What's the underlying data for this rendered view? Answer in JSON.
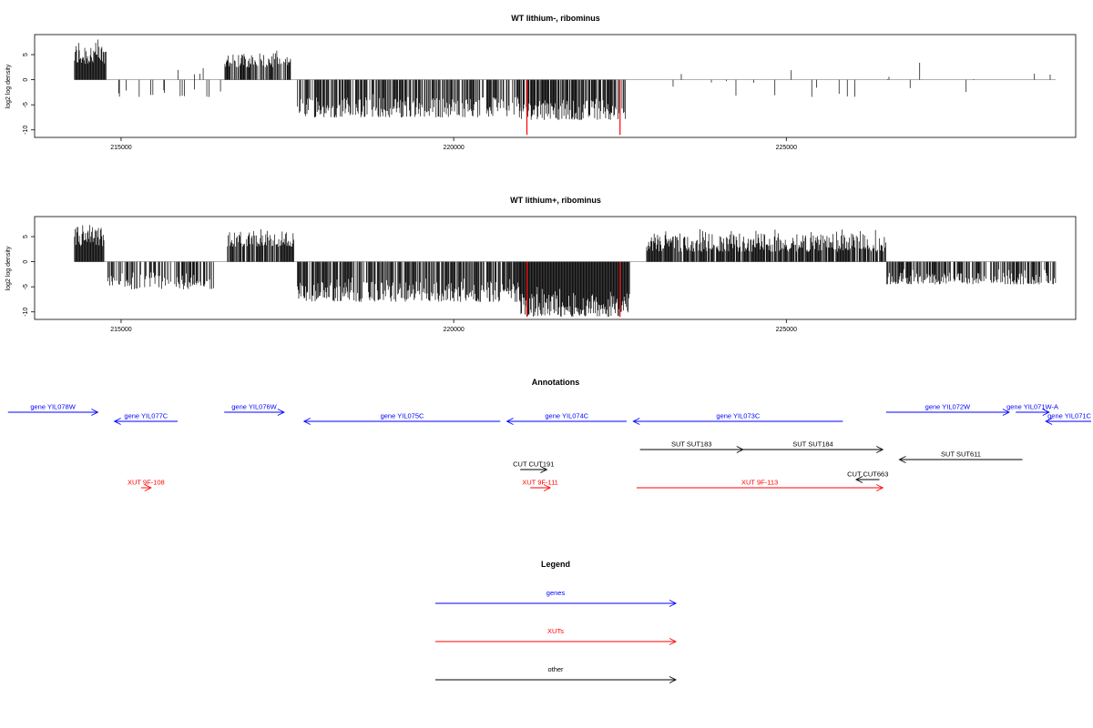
{
  "chart_data": [
    {
      "type": "bar",
      "title": "WT lithium-, ribominus",
      "ylabel": "log2 log density",
      "xlabel": "",
      "xlim": [
        213700,
        229350
      ],
      "ylim": [
        -11.5,
        9
      ],
      "xticks": [
        215000,
        220000,
        225000
      ],
      "yticks": [
        -10,
        -5,
        0,
        5
      ],
      "highlight_color": "#ff0000",
      "highlights": [
        {
          "x": 221100,
          "y": -11
        },
        {
          "x": 222500,
          "y": -11
        }
      ],
      "regions": [
        {
          "start": 214300,
          "end": 214780,
          "min": 3,
          "max": 8.5,
          "density": 1
        },
        {
          "start": 214800,
          "end": 216500,
          "min": -3.5,
          "max": -1.5,
          "density": 0.1
        },
        {
          "start": 215700,
          "end": 216300,
          "min": 1,
          "max": 2.5,
          "density": 0.05
        },
        {
          "start": 216550,
          "end": 217550,
          "min": 2.5,
          "max": 6,
          "density": 0.8
        },
        {
          "start": 217650,
          "end": 221000,
          "min": -7.5,
          "max": -2.5,
          "density": 0.7
        },
        {
          "start": 221000,
          "end": 222600,
          "min": -8,
          "max": -3,
          "density": 0.8
        },
        {
          "start": 223000,
          "end": 229100,
          "min": -3.5,
          "max": 3.5,
          "density": 0.04
        }
      ]
    },
    {
      "type": "bar",
      "title": "WT lithium+, ribominus",
      "ylabel": "log2 log density",
      "xlabel": "",
      "xlim": [
        213700,
        229350
      ],
      "ylim": [
        -11.5,
        9
      ],
      "xticks": [
        215000,
        220000,
        225000
      ],
      "yticks": [
        -10,
        -5,
        0,
        5
      ],
      "highlight_color": "#ff0000",
      "highlights": [
        {
          "x": 221100,
          "y": -11
        },
        {
          "x": 222500,
          "y": -11
        }
      ],
      "regions": [
        {
          "start": 214300,
          "end": 214750,
          "min": 3,
          "max": 8,
          "density": 1
        },
        {
          "start": 214800,
          "end": 216400,
          "min": -5.5,
          "max": -2,
          "density": 0.6
        },
        {
          "start": 216600,
          "end": 217600,
          "min": 3,
          "max": 7,
          "density": 0.9
        },
        {
          "start": 217650,
          "end": 221000,
          "min": -8,
          "max": -3,
          "density": 0.8
        },
        {
          "start": 221000,
          "end": 222650,
          "min": -11,
          "max": -5,
          "density": 1
        },
        {
          "start": 222900,
          "end": 226500,
          "min": 2,
          "max": 6.5,
          "density": 0.9
        },
        {
          "start": 226500,
          "end": 229050,
          "min": -4.5,
          "max": -1.5,
          "density": 0.7
        }
      ]
    }
  ],
  "annotations": {
    "title": "Annotations",
    "features": [
      {
        "label": "gene YIL078W",
        "start": 213300,
        "end": 214650,
        "strand": "+",
        "row": 0,
        "color": "#0000ff"
      },
      {
        "label": "gene YIL077C",
        "start": 214900,
        "end": 215850,
        "strand": "-",
        "row": 1,
        "color": "#0000ff"
      },
      {
        "label": "gene YIL076W",
        "start": 216550,
        "end": 217450,
        "strand": "+",
        "row": 0,
        "color": "#0000ff"
      },
      {
        "label": "gene YIL075C",
        "start": 217750,
        "end": 220700,
        "strand": "-",
        "row": 1,
        "color": "#0000ff"
      },
      {
        "label": "gene YIL074C",
        "start": 220800,
        "end": 222600,
        "strand": "-",
        "row": 1,
        "color": "#0000ff"
      },
      {
        "label": "gene YIL073C",
        "start": 222700,
        "end": 225850,
        "strand": "-",
        "row": 1,
        "color": "#0000ff"
      },
      {
        "label": "gene YIL072W",
        "start": 226500,
        "end": 228350,
        "strand": "+",
        "row": 0,
        "color": "#0000ff"
      },
      {
        "label": "gene YIL071W-A",
        "start": 228450,
        "end": 228950,
        "strand": "+",
        "row": 0,
        "color": "#0000ff"
      },
      {
        "label": "gene YIL071C",
        "start": 228900,
        "end": 230300,
        "strand": "-",
        "row": 1,
        "color": "#0000ff"
      },
      {
        "label": "SUT SUT183",
        "start": 222800,
        "end": 224350,
        "strand": "+",
        "row": 3,
        "color": "#000000"
      },
      {
        "label": "SUT SUT184",
        "start": 224350,
        "end": 226450,
        "strand": "+",
        "row": 3,
        "color": "#000000"
      },
      {
        "label": "SUT SUT611",
        "start": 226700,
        "end": 228550,
        "strand": "-",
        "row": 4,
        "color": "#000000"
      },
      {
        "label": "CUT CUT191",
        "start": 221000,
        "end": 221400,
        "strand": "+",
        "row": 5,
        "color": "#000000"
      },
      {
        "label": "CUT CUT663",
        "start": 226050,
        "end": 226400,
        "strand": "-",
        "row": 6,
        "color": "#000000"
      },
      {
        "label": "XUT 9F-108",
        "start": 215300,
        "end": 215450,
        "strand": "+",
        "row": 7,
        "color": "#ff0000"
      },
      {
        "label": "XUT 9F-111",
        "start": 221150,
        "end": 221450,
        "strand": "+",
        "row": 7,
        "color": "#ff0000"
      },
      {
        "label": "XUT 9F-113",
        "start": 222750,
        "end": 226450,
        "strand": "+",
        "row": 7,
        "color": "#ff0000"
      }
    ]
  },
  "legend": {
    "title": "Legend",
    "items": [
      {
        "label": "genes",
        "color": "#0000ff"
      },
      {
        "label": "XUTs",
        "color": "#ff0000"
      },
      {
        "label": "other",
        "color": "#000000"
      }
    ]
  }
}
